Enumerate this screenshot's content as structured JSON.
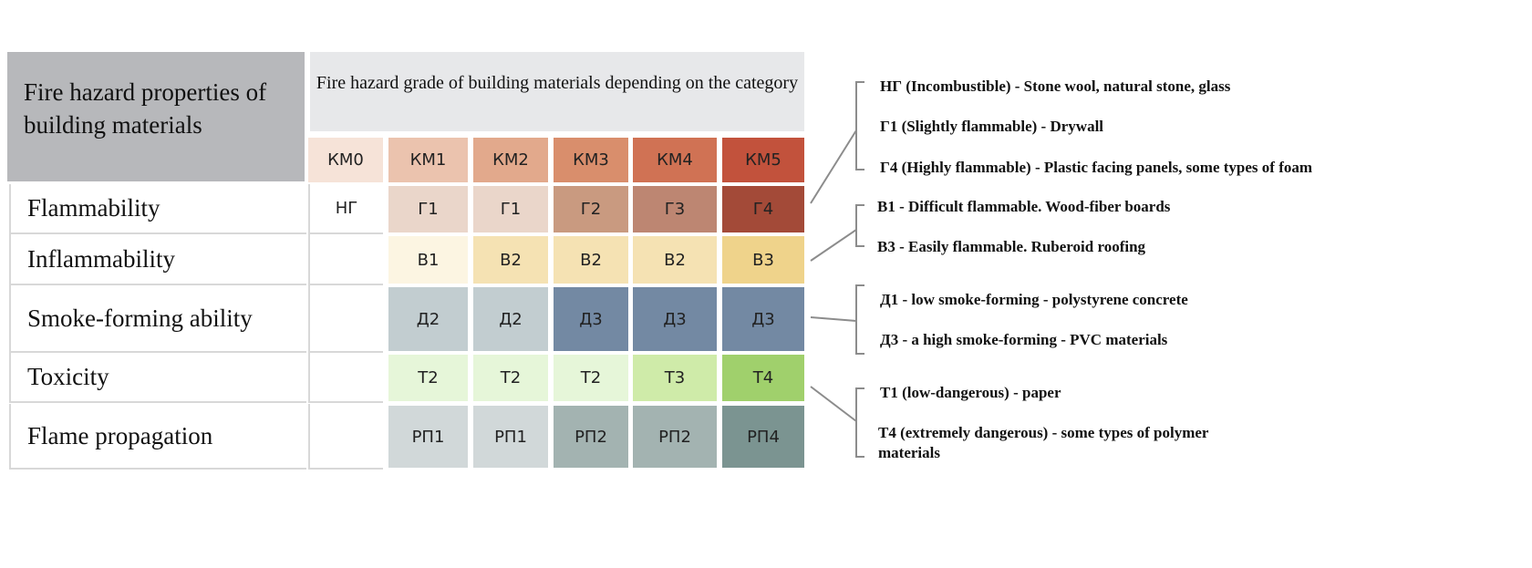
{
  "title": "Fire hazard properties of building materials",
  "header": "Fire hazard grade of building materials depending on the category",
  "categories": [
    {
      "label": "КМ0",
      "color": "#f6e3d8"
    },
    {
      "label": "КМ1",
      "color": "#ebc3ae"
    },
    {
      "label": "КМ2",
      "color": "#e2a98c"
    },
    {
      "label": "КМ3",
      "color": "#d98e6c"
    },
    {
      "label": "КМ4",
      "color": "#d07254"
    },
    {
      "label": "КМ5",
      "color": "#c2523c"
    }
  ],
  "rows": [
    {
      "label": "Flammability",
      "km0": "НГ",
      "cells": [
        {
          "label": "Г1",
          "color": "#ead6ca"
        },
        {
          "label": "Г1",
          "color": "#ead6ca"
        },
        {
          "label": "Г2",
          "color": "#c99a80"
        },
        {
          "label": "Г3",
          "color": "#bd8672"
        },
        {
          "label": "Г4",
          "color": "#a34a38"
        }
      ]
    },
    {
      "label": "Inflammability",
      "km0": "",
      "cells": [
        {
          "label": "В1",
          "color": "#fcf5e2"
        },
        {
          "label": "В2",
          "color": "#f5e2b3"
        },
        {
          "label": "В2",
          "color": "#f5e2b3"
        },
        {
          "label": "В2",
          "color": "#f5e2b3"
        },
        {
          "label": "В3",
          "color": "#efd38b"
        }
      ]
    },
    {
      "label": "Smoke-forming ability",
      "km0": "",
      "cells": [
        {
          "label": "Д2",
          "color": "#c2cdd0"
        },
        {
          "label": "Д2",
          "color": "#c2cdd0"
        },
        {
          "label": "Д3",
          "color": "#7389a3"
        },
        {
          "label": "Д3",
          "color": "#7389a3"
        },
        {
          "label": "Д3",
          "color": "#7389a3"
        }
      ]
    },
    {
      "label": "Toxicity",
      "km0": "",
      "cells": [
        {
          "label": "Т2",
          "color": "#e6f6d9"
        },
        {
          "label": "Т2",
          "color": "#e6f6d9"
        },
        {
          "label": "Т2",
          "color": "#e6f6d9"
        },
        {
          "label": "Т3",
          "color": "#cfeba9"
        },
        {
          "label": "Т4",
          "color": "#a0d06c"
        }
      ]
    },
    {
      "label": "Flame propagation",
      "km0": "",
      "cells": [
        {
          "label": "РП1",
          "color": "#d1d8d9"
        },
        {
          "label": "РП1",
          "color": "#d1d8d9"
        },
        {
          "label": "РП2",
          "color": "#a3b3b1"
        },
        {
          "label": "РП2",
          "color": "#a3b3b1"
        },
        {
          "label": "РП4",
          "color": "#7b9491"
        }
      ]
    }
  ],
  "notes": [
    {
      "lines": [
        "НГ (Incombustible) -  Stone wool, natural stone, glass",
        "Г1 (Slightly flammable) - Drywall",
        "Г4 (Highly flammable) - Plastic facing panels, some types of foam"
      ]
    },
    {
      "lines": [
        "В1 - Difficult flammable. Wood-fiber boards",
        "В3 - Easily flammable. Ruberoid roofing"
      ]
    },
    {
      "lines": [
        "Д1 - low smoke-forming - polystyrene concrete",
        "Д3 - a high smoke-forming - PVC materials"
      ]
    },
    {
      "lines": [
        "Т1 (low-dangerous) - paper",
        "Т4 (extremely dangerous) - some types of polymer",
        "materials"
      ]
    }
  ]
}
